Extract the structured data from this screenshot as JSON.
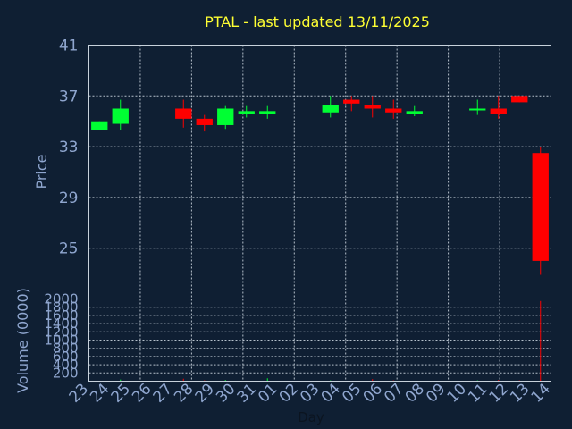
{
  "chart_data": {
    "type": "candlestick",
    "title": "PTAL - last updated 13/11/2025",
    "ylabel": "Price",
    "ylabel_volume": "Volume (0000)",
    "xlabel": "Day",
    "ylim": [
      21,
      41
    ],
    "yticks": [
      41,
      37,
      33,
      29,
      25
    ],
    "volume_ylim": [
      0,
      2000
    ],
    "volume_ticks": [
      2000,
      1800,
      1600,
      1400,
      1200,
      1000,
      800,
      600,
      400,
      200
    ],
    "x_ticks": [
      "23",
      "24",
      "25",
      "26",
      "27",
      "28",
      "29",
      "30",
      "31",
      "01",
      "02",
      "03",
      "04",
      "05",
      "06",
      "07",
      "08",
      "09",
      "10",
      "11",
      "12",
      "13",
      "14"
    ],
    "up_color": "#00ff33",
    "down_color": "#ff0000",
    "candles": [
      {
        "day": "23",
        "open": 34.3,
        "close": 35.0,
        "high": 35.0,
        "low": 34.3,
        "volume": 0
      },
      {
        "day": "24",
        "open": 34.8,
        "close": 36.0,
        "high": 36.7,
        "low": 34.3,
        "volume": 40
      },
      {
        "day": "27",
        "open": 36.0,
        "close": 35.2,
        "high": 36.7,
        "low": 34.5,
        "volume": 60
      },
      {
        "day": "28",
        "open": 35.2,
        "close": 34.7,
        "high": 35.5,
        "low": 34.2,
        "volume": 20
      },
      {
        "day": "29",
        "open": 34.7,
        "close": 36.0,
        "high": 36.2,
        "low": 34.4,
        "volume": 30
      },
      {
        "day": "30",
        "open": 35.6,
        "close": 35.8,
        "high": 36.2,
        "low": 35.3,
        "volume": 10
      },
      {
        "day": "31",
        "open": 35.6,
        "close": 35.8,
        "high": 36.2,
        "low": 35.2,
        "volume": 70
      },
      {
        "day": "03",
        "open": 35.7,
        "close": 36.3,
        "high": 37.0,
        "low": 35.3,
        "volume": 20
      },
      {
        "day": "04",
        "open": 36.7,
        "close": 36.4,
        "high": 37.0,
        "low": 35.8,
        "volume": 10
      },
      {
        "day": "05",
        "open": 36.3,
        "close": 36.0,
        "high": 37.0,
        "low": 35.3,
        "volume": 50
      },
      {
        "day": "06",
        "open": 36.0,
        "close": 35.7,
        "high": 36.7,
        "low": 35.2,
        "volume": 20
      },
      {
        "day": "07",
        "open": 35.6,
        "close": 35.8,
        "high": 36.2,
        "low": 35.4,
        "volume": 10
      },
      {
        "day": "10",
        "open": 35.9,
        "close": 36.0,
        "high": 36.7,
        "low": 35.5,
        "volume": 20
      },
      {
        "day": "11",
        "open": 36.0,
        "close": 35.6,
        "high": 37.0,
        "low": 35.2,
        "volume": 30
      },
      {
        "day": "12",
        "open": 37.0,
        "close": 36.5,
        "high": 37.0,
        "low": 36.5,
        "volume": 20
      },
      {
        "day": "13",
        "open": 32.5,
        "close": 24.0,
        "high": 33.0,
        "low": 22.9,
        "volume": 1950
      }
    ]
  }
}
